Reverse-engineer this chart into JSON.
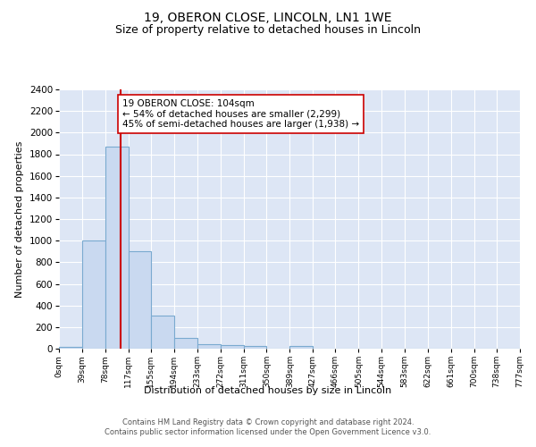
{
  "title": "19, OBERON CLOSE, LINCOLN, LN1 1WE",
  "subtitle": "Size of property relative to detached houses in Lincoln",
  "xlabel": "Distribution of detached houses by size in Lincoln",
  "ylabel": "Number of detached properties",
  "bin_edges": [
    0,
    39,
    78,
    117,
    155,
    194,
    233,
    272,
    311,
    350,
    389,
    427,
    466,
    505,
    544,
    583,
    622,
    661,
    700,
    738,
    777
  ],
  "bin_labels": [
    "0sqm",
    "39sqm",
    "78sqm",
    "117sqm",
    "155sqm",
    "194sqm",
    "233sqm",
    "272sqm",
    "311sqm",
    "350sqm",
    "389sqm",
    "427sqm",
    "466sqm",
    "505sqm",
    "544sqm",
    "583sqm",
    "622sqm",
    "661sqm",
    "700sqm",
    "738sqm",
    "777sqm"
  ],
  "bar_heights": [
    20,
    1000,
    1870,
    900,
    310,
    100,
    45,
    35,
    25,
    0,
    25,
    0,
    0,
    0,
    0,
    0,
    0,
    0,
    0,
    0
  ],
  "bar_color": "#c9d9f0",
  "bar_edge_color": "#7aaad0",
  "property_line_x": 104,
  "property_line_color": "#cc0000",
  "annotation_text": "19 OBERON CLOSE: 104sqm\n← 54% of detached houses are smaller (2,299)\n45% of semi-detached houses are larger (1,938) →",
  "annotation_box_color": "#ffffff",
  "annotation_box_edge_color": "#cc0000",
  "ylim": [
    0,
    2400
  ],
  "yticks": [
    0,
    200,
    400,
    600,
    800,
    1000,
    1200,
    1400,
    1600,
    1800,
    2000,
    2200,
    2400
  ],
  "background_color": "#dde6f5",
  "footer_text": "Contains HM Land Registry data © Crown copyright and database right 2024.\nContains public sector information licensed under the Open Government Licence v3.0.",
  "title_fontsize": 10,
  "subtitle_fontsize": 9,
  "annotation_fontsize": 7.5,
  "ylabel_fontsize": 8,
  "xlabel_fontsize": 8,
  "ytick_fontsize": 7.5,
  "xtick_fontsize": 6.5
}
